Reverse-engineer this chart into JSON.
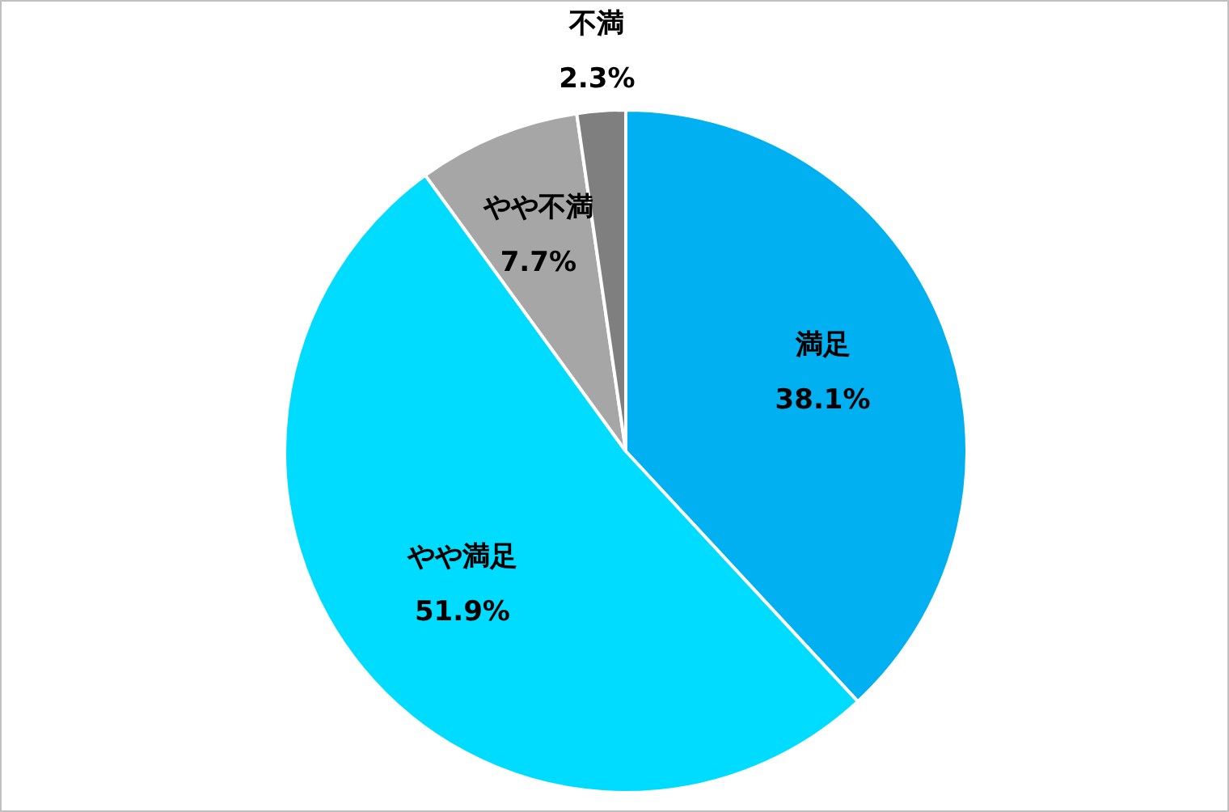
{
  "chart_data": {
    "type": "pie",
    "categories": [
      "満足",
      "やや満足",
      "やや不満",
      "不満"
    ],
    "values": [
      38.1,
      51.9,
      7.7,
      2.3
    ],
    "colors": [
      "#00b0f0",
      "#00dcff",
      "#a6a6a6",
      "#7f7f7f"
    ],
    "value_labels": [
      "38.1%",
      "51.9%",
      "7.7%",
      "2.3%"
    ],
    "legend": false
  }
}
